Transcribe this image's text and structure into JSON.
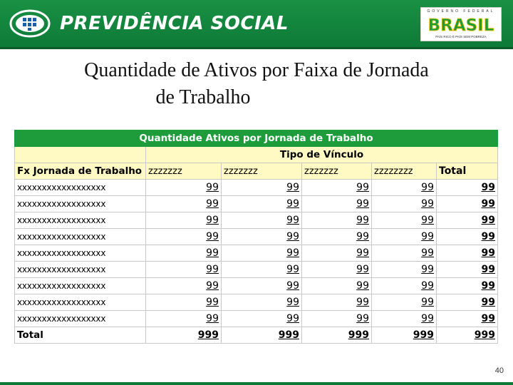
{
  "header": {
    "brand": "PREVIDÊNCIA SOCIAL",
    "gov_top": "GOVERNO FEDERAL",
    "gov_word": "BRASIL",
    "gov_bottom": "PAÍS RICO É PAÍS SEM POBREZA",
    "colors": {
      "banner": "#1a9144",
      "gov_green": "#1e9c3c",
      "gov_yellow": "#f5c400"
    }
  },
  "title": {
    "line1": "Quantidade de Ativos por Faixa de Jornada",
    "line2": "de Trabalho"
  },
  "table": {
    "title": "Quantidade Ativos por Jornada de Trabalho",
    "group_header": "Tipo de Vínculo",
    "columns": [
      "Fx Jornada de Trabalho",
      "zzzzzzz",
      "zzzzzzz",
      "zzzzzzz",
      "zzzzzzzz",
      "Total"
    ],
    "rows": [
      {
        "label": "xxxxxxxxxxxxxxxxxx",
        "values": [
          "99",
          "99",
          "99",
          "99",
          "99"
        ]
      },
      {
        "label": "xxxxxxxxxxxxxxxxxx",
        "values": [
          "99",
          "99",
          "99",
          "99",
          "99"
        ]
      },
      {
        "label": "xxxxxxxxxxxxxxxxxx",
        "values": [
          "99",
          "99",
          "99",
          "99",
          "99"
        ]
      },
      {
        "label": "xxxxxxxxxxxxxxxxxx",
        "values": [
          "99",
          "99",
          "99",
          "99",
          "99"
        ]
      },
      {
        "label": "xxxxxxxxxxxxxxxxxx",
        "values": [
          "99",
          "99",
          "99",
          "99",
          "99"
        ]
      },
      {
        "label": "xxxxxxxxxxxxxxxxxx",
        "values": [
          "99",
          "99",
          "99",
          "99",
          "99"
        ]
      },
      {
        "label": "xxxxxxxxxxxxxxxxxx",
        "values": [
          "99",
          "99",
          "99",
          "99",
          "99"
        ]
      },
      {
        "label": "xxxxxxxxxxxxxxxxxx",
        "values": [
          "99",
          "99",
          "99",
          "99",
          "99"
        ]
      },
      {
        "label": "xxxxxxxxxxxxxxxxxx",
        "values": [
          "99",
          "99",
          "99",
          "99",
          "99"
        ]
      }
    ],
    "total_row": {
      "label": "Total",
      "values": [
        "999",
        "999",
        "999",
        "999",
        "999"
      ]
    },
    "colors": {
      "header_bg": "#1e9c3c",
      "highlight_bg": "#fff9c4"
    }
  },
  "page_number": "40"
}
